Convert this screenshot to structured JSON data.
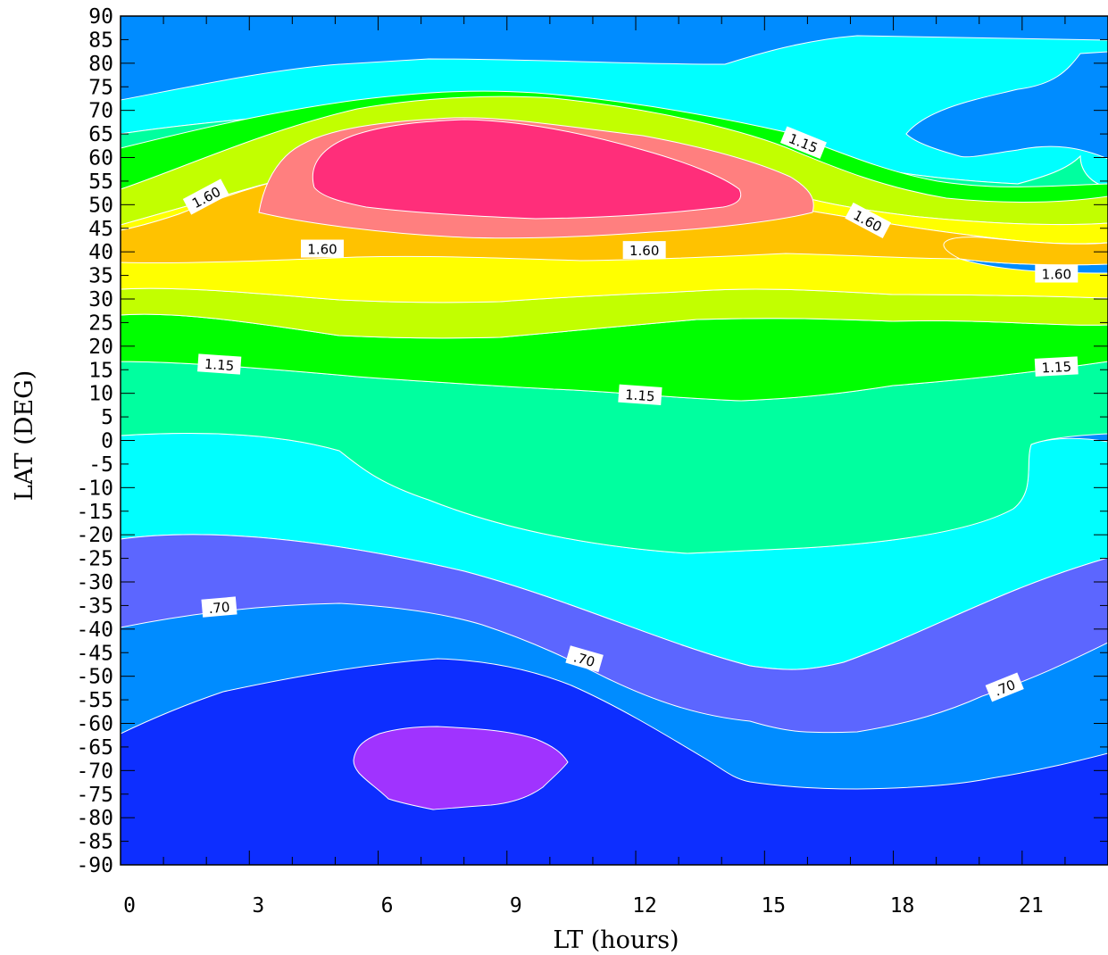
{
  "chart_data": {
    "type": "contour",
    "title": "",
    "xlabel": "LT (hours)",
    "ylabel": "LAT (DEG)",
    "xlim": [
      0,
      23
    ],
    "ylim": [
      -90,
      90
    ],
    "x_ticks": [
      "0",
      "3",
      "6",
      "9",
      "12",
      "15",
      "18",
      "21"
    ],
    "y_ticks": [
      "90",
      "85",
      "80",
      "75",
      "70",
      "65",
      "60",
      "55",
      "50",
      "45",
      "40",
      "35",
      "30",
      "25",
      "20",
      "15",
      "10",
      "5",
      "0",
      "-5",
      "-10",
      "-15",
      "-20",
      "-25",
      "-30",
      "-35",
      "-40",
      "-45",
      "-50",
      "-55",
      "-60",
      "-65",
      "-70",
      "-75",
      "-80",
      "-85",
      "-90"
    ],
    "contour_step": 0.15,
    "colors": {
      "0.40": "#a033ff",
      "0.55": "#0d2eff",
      "0.70": "#5c66ff",
      "0.85": "#008cff",
      "1.00": "#00ffff",
      "1.15": "#00ff9f",
      "1.30": "#00ff00",
      "1.45": "#c2ff00",
      "1.60": "#ffff00",
      "1.75": "#ffc200",
      "1.90": "#ff7f7f",
      "2.05": "#ff2e7a"
    },
    "contour_labels": [
      {
        "text": "1.60",
        "lt": 2.0,
        "lat": 51.5,
        "angle": -28
      },
      {
        "text": "1.60",
        "lt": 4.7,
        "lat": 40.5,
        "angle": 0
      },
      {
        "text": "1.60",
        "lt": 12.2,
        "lat": 40.2,
        "angle": 0
      },
      {
        "text": "1.60",
        "lt": 17.4,
        "lat": 46.5,
        "angle": 28
      },
      {
        "text": "1.60",
        "lt": 21.8,
        "lat": 35.2,
        "angle": 0
      },
      {
        "text": "1.15",
        "lt": 15.9,
        "lat": 63.0,
        "angle": 22
      },
      {
        "text": "1.15",
        "lt": 2.3,
        "lat": 16.0,
        "angle": 4
      },
      {
        "text": "1.15",
        "lt": 12.1,
        "lat": 9.5,
        "angle": 4
      },
      {
        "text": "1.15",
        "lt": 21.8,
        "lat": 15.5,
        "angle": -3
      },
      {
        "text": ".70",
        "lt": 2.3,
        "lat": -35.5,
        "angle": -5
      },
      {
        "text": ".70",
        "lt": 10.8,
        "lat": -46.5,
        "angle": 16
      },
      {
        "text": ".70",
        "lt": 20.6,
        "lat": -52.5,
        "angle": -22
      }
    ]
  }
}
